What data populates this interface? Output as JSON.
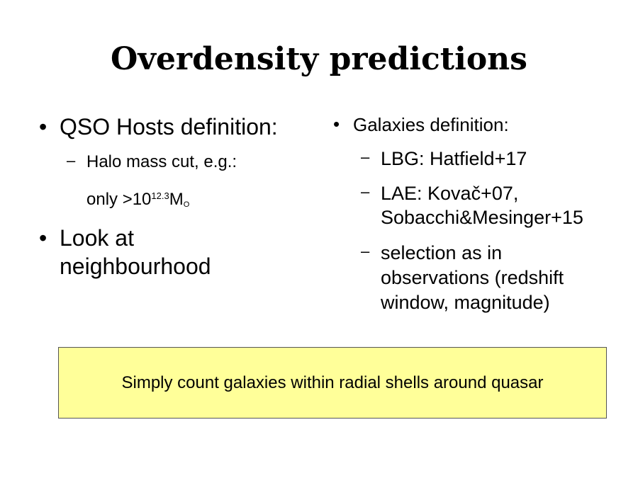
{
  "slide": {
    "title": "Overdensity predictions",
    "bullet_glyph": "•",
    "dash_glyph": "–",
    "left_column": {
      "qso_heading": "QSO Hosts definition:",
      "halo_cut": "Halo mass cut, e.g.:",
      "mass_prefix": "only >10",
      "mass_exponent": "12.3",
      "mass_unit": "M",
      "mass_unit_sub": "O",
      "look_at": "Look at neighbourhood"
    },
    "right_column": {
      "galaxies_heading": "Galaxies definition:",
      "lbg": "LBG: Hatfield+17",
      "lae": "LAE: Kovač+07, Sobacchi&Mesinger+15",
      "selection": "selection as in observations (redshift window, magnitude)"
    },
    "summary_box": {
      "text": "Simply count galaxies within radial shells around quasar",
      "background_color": "#ffff99"
    }
  }
}
